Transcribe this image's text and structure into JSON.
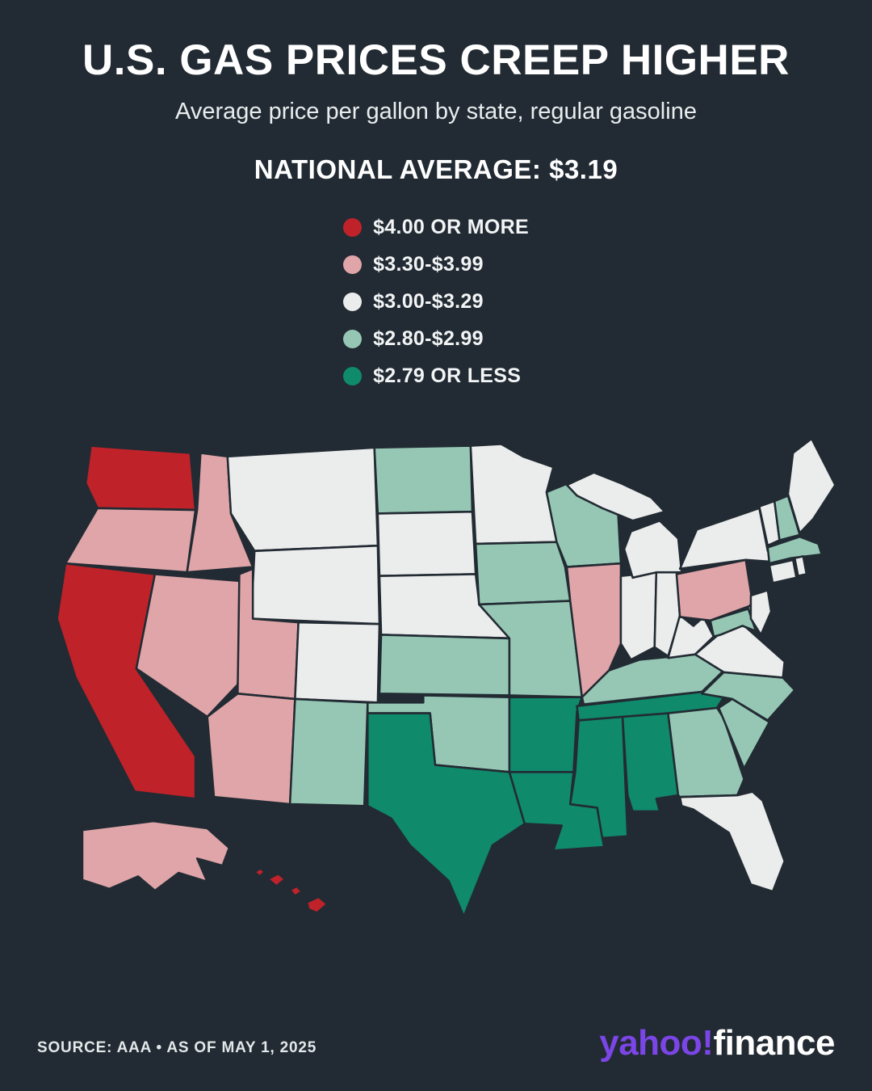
{
  "header": {
    "title": "U.S. GAS PRICES CREEP HIGHER",
    "subtitle": "Average price per gallon by state, regular gasoline",
    "national_average_label": "NATIONAL AVERAGE:",
    "national_average_value": "$3.19"
  },
  "footer": {
    "source": "SOURCE: AAA • AS OF MAY 1, 2025",
    "brand_yahoo": "yahoo!",
    "brand_finance": "finance",
    "brand_yahoo_color": "#7B45E7"
  },
  "theme": {
    "background": "#222B33",
    "text": "#FFFFFF",
    "state_border": "#222B33"
  },
  "chart_data": {
    "type": "heatmap",
    "subtype": "us-state-choropleth",
    "title": "U.S. GAS PRICES CREEP HIGHER",
    "subtitle": "Average price per gallon by state, regular gasoline",
    "national_average": 3.19,
    "unit": "USD per gallon, regular gasoline",
    "source": "AAA",
    "as_of": "MAY 1, 2025",
    "legend_position": "top-center",
    "bins": [
      {
        "label": "$4.00 OR MORE",
        "color": "#C0222A"
      },
      {
        "label": "$3.30-$3.99",
        "color": "#DFA5A9"
      },
      {
        "label": "$3.00-$3.29",
        "color": "#EBECEC"
      },
      {
        "label": "$2.80-$2.99",
        "color": "#96C7B4"
      },
      {
        "label": "$2.79 OR LESS",
        "color": "#0F8A6B"
      }
    ],
    "states": {
      "WA": "$4.00 OR MORE",
      "OR": "$3.30-$3.99",
      "CA": "$4.00 OR MORE",
      "NV": "$3.30-$3.99",
      "ID": "$3.30-$3.99",
      "MT": "$3.00-$3.29",
      "WY": "$3.00-$3.29",
      "UT": "$3.30-$3.99",
      "CO": "$3.00-$3.29",
      "AZ": "$3.30-$3.99",
      "NM": "$2.80-$2.99",
      "ND": "$2.80-$2.99",
      "SD": "$3.00-$3.29",
      "NE": "$3.00-$3.29",
      "KS": "$2.80-$2.99",
      "OK": "$2.80-$2.99",
      "TX": "$2.79 OR LESS",
      "MN": "$3.00-$3.29",
      "IA": "$2.80-$2.99",
      "MO": "$2.80-$2.99",
      "AR": "$2.79 OR LESS",
      "LA": "$2.79 OR LESS",
      "WI": "$2.80-$2.99",
      "IL": "$3.30-$3.99",
      "IN": "$3.00-$3.29",
      "MI": "$3.00-$3.29",
      "OH": "$3.00-$3.29",
      "KY": "$2.80-$2.99",
      "TN": "$2.79 OR LESS",
      "MS": "$2.79 OR LESS",
      "AL": "$2.79 OR LESS",
      "GA": "$2.80-$2.99",
      "FL": "$3.00-$3.29",
      "SC": "$2.80-$2.99",
      "NC": "$2.80-$2.99",
      "VA": "$3.00-$3.29",
      "WV": "$3.00-$3.29",
      "MD": "$2.80-$2.99",
      "DE": "$2.80-$2.99",
      "PA": "$3.30-$3.99",
      "NJ": "$3.00-$3.29",
      "NY": "$3.00-$3.29",
      "CT": "$3.00-$3.29",
      "RI": "$3.00-$3.29",
      "MA": "$2.80-$2.99",
      "VT": "$3.00-$3.29",
      "NH": "$2.80-$2.99",
      "ME": "$3.00-$3.29",
      "AK": "$3.30-$3.99",
      "HI": "$4.00 OR MORE"
    }
  }
}
